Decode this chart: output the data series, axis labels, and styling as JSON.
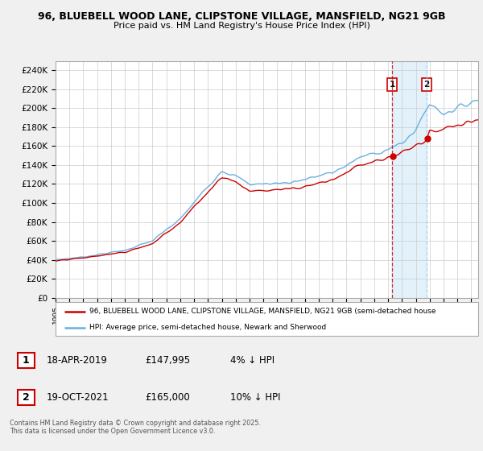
{
  "title_line1": "96, BLUEBELL WOOD LANE, CLIPSTONE VILLAGE, MANSFIELD, NG21 9GB",
  "title_line2": "Price paid vs. HM Land Registry's House Price Index (HPI)",
  "ylim": [
    0,
    250000
  ],
  "yticks": [
    0,
    20000,
    40000,
    60000,
    80000,
    100000,
    120000,
    140000,
    160000,
    180000,
    200000,
    220000,
    240000
  ],
  "ytick_labels": [
    "£0",
    "£20K",
    "£40K",
    "£60K",
    "£80K",
    "£100K",
    "£120K",
    "£140K",
    "£160K",
    "£180K",
    "£200K",
    "£220K",
    "£240K"
  ],
  "xlim_start": 1995.0,
  "xlim_end": 2025.5,
  "hpi_color": "#6ab0de",
  "price_color": "#cc0000",
  "vline1_color": "#cc0000",
  "vline2_color": "#aaccee",
  "shade_color": "#d0e8f8",
  "background_color": "#f0f0f0",
  "plot_bg_color": "#ffffff",
  "sale1_date_num": 2019.29,
  "sale1_price": 147995,
  "sale1_label": "1",
  "sale2_date_num": 2021.79,
  "sale2_price": 165000,
  "sale2_label": "2",
  "legend_line1": "96, BLUEBELL WOOD LANE, CLIPSTONE VILLAGE, MANSFIELD, NG21 9GB (semi-detached house",
  "legend_line2": "HPI: Average price, semi-detached house, Newark and Sherwood",
  "note1_label": "1",
  "note1_date": "18-APR-2019",
  "note1_price": "£147,995",
  "note1_detail": "4% ↓ HPI",
  "note2_label": "2",
  "note2_date": "19-OCT-2021",
  "note2_price": "£165,000",
  "note2_detail": "10% ↓ HPI",
  "copyright": "Contains HM Land Registry data © Crown copyright and database right 2025.\nThis data is licensed under the Open Government Licence v3.0."
}
